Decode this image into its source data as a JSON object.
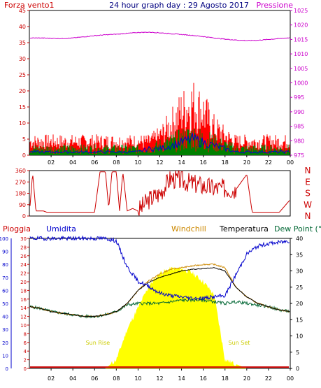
{
  "header": {
    "title": "24 hour graph day : 29 Agosto 2017",
    "left_label": "Forza vento1",
    "right_label": "Pressione"
  },
  "colors": {
    "wind_gust": "#ff0000",
    "wind_avg": "#008000",
    "wind_speed_line": "#0000cc",
    "pressure": "#cc00cc",
    "direction": "#cc0000",
    "rain": "#cc0000",
    "humidity": "#0000cc",
    "windchill": "#cc8800",
    "temperature": "#000000",
    "dewpoint": "#006633",
    "solar": "#ffff00"
  },
  "chart_data": [
    {
      "type": "line",
      "name": "wind-pressure",
      "x_tick_labels": [
        "02",
        "04",
        "06",
        "08",
        "10",
        "12",
        "14",
        "16",
        "18",
        "20",
        "22",
        "00"
      ],
      "left_axis": {
        "label": "Forza vento1",
        "ylim": [
          0,
          45
        ],
        "ticks": [
          "0",
          "5",
          "10",
          "15",
          "20",
          "25",
          "30",
          "35",
          "40",
          "45"
        ]
      },
      "right_axis": {
        "label": "Pressione",
        "ylim": [
          975,
          1025
        ],
        "ticks": [
          "975",
          "980",
          "985",
          "990",
          "995",
          "1000",
          "1005",
          "1010",
          "1015",
          "1020",
          "1025"
        ]
      },
      "hours": [
        0,
        1,
        2,
        3,
        4,
        5,
        6,
        7,
        8,
        9,
        10,
        11,
        12,
        13,
        14,
        15,
        16,
        17,
        18,
        19,
        20,
        21,
        22,
        23,
        24
      ],
      "series": [
        {
          "name": "Pressione",
          "values": [
            1015.5,
            1015.5,
            1015.4,
            1015.3,
            1015.5,
            1015.9,
            1016.3,
            1016.6,
            1016.8,
            1017.1,
            1017.4,
            1017.5,
            1017.3,
            1017,
            1016.7,
            1016.4,
            1016,
            1015.5,
            1015.1,
            1014.8,
            1014.6,
            1014.7,
            1015,
            1015.3,
            1015.6
          ]
        },
        {
          "name": "gust",
          "values": [
            5,
            5,
            5,
            5,
            5,
            5,
            5,
            5,
            5,
            5,
            5,
            5,
            7,
            11,
            16,
            19,
            16,
            10,
            7,
            5,
            5,
            5,
            5,
            5,
            5
          ]
        },
        {
          "name": "average",
          "values": [
            2,
            2,
            2,
            2,
            2,
            2,
            2,
            2,
            2,
            2,
            2,
            2,
            3,
            4,
            5,
            6,
            5,
            4,
            3,
            2,
            2,
            2,
            2,
            2,
            2
          ]
        },
        {
          "name": "speed",
          "values": [
            1,
            1,
            1,
            1,
            1,
            1,
            1,
            1,
            1,
            1,
            1,
            2,
            2,
            3,
            4,
            5,
            4,
            3,
            2,
            1,
            1,
            1,
            1,
            1,
            1
          ]
        }
      ]
    },
    {
      "type": "line",
      "name": "wind-direction",
      "ylim": [
        0,
        360
      ],
      "ticks": [
        "0",
        "90",
        "180",
        "270",
        "360"
      ],
      "compass_labels": [
        "N",
        "W",
        "S",
        "E",
        "N"
      ],
      "hours": [
        0,
        0.3,
        0.6,
        1,
        1.3,
        1.6,
        2,
        3,
        4,
        5,
        6,
        6.5,
        7,
        7.3,
        7.6,
        8,
        8.3,
        8.6,
        9,
        9.5,
        10,
        11,
        12,
        13,
        14,
        15,
        16,
        17,
        18,
        19,
        20,
        20.5,
        21,
        22,
        23,
        24
      ],
      "values": [
        10,
        340,
        40,
        40,
        40,
        30,
        30,
        30,
        30,
        30,
        30,
        350,
        350,
        60,
        350,
        350,
        40,
        350,
        40,
        60,
        40,
        130,
        180,
        300,
        280,
        260,
        240,
        220,
        220,
        210,
        330,
        30,
        30,
        30,
        30,
        130
      ]
    },
    {
      "type": "area",
      "name": "humidity-temperature",
      "x_tick_labels": [
        "02",
        "04",
        "06",
        "08",
        "10",
        "12",
        "14",
        "16",
        "18",
        "20",
        "22",
        "00"
      ],
      "annotations": [
        "Sun Rise",
        "Sun Set"
      ],
      "legend": [
        "Pioggia",
        "Umidita",
        "Windchill",
        "Temperatura",
        "Dew Point (°C"
      ],
      "left_axis_rain": {
        "label": "Pioggia",
        "ylim": [
          0,
          30
        ],
        "ticks": [
          "0",
          "2",
          "4",
          "6",
          "8",
          "10",
          "12",
          "14",
          "16",
          "18",
          "20",
          "22",
          "24",
          "26",
          "28",
          "30"
        ]
      },
      "left_axis_humidity": {
        "label": "Umidita",
        "ylim": [
          0,
          100
        ],
        "ticks": [
          "0",
          "10",
          "20",
          "30",
          "40",
          "50",
          "60",
          "70",
          "80",
          "90",
          "100"
        ]
      },
      "right_axis": {
        "label": "Dew Point (°C",
        "ylim": [
          0,
          40
        ],
        "ticks": [
          "0",
          "5",
          "10",
          "15",
          "20",
          "25",
          "30",
          "35",
          "40"
        ]
      },
      "hours": [
        0,
        1,
        2,
        3,
        4,
        5,
        6,
        7,
        8,
        9,
        10,
        11,
        12,
        13,
        14,
        15,
        16,
        17,
        18,
        19,
        20,
        21,
        22,
        23,
        24
      ],
      "series": [
        {
          "name": "Umidita",
          "values": [
            100,
            100,
            100,
            100,
            100,
            100,
            100,
            100,
            98,
            78,
            67,
            63,
            58,
            56,
            55,
            54,
            54,
            55,
            56,
            72,
            88,
            94,
            96,
            97,
            98
          ]
        },
        {
          "name": "Temperatura",
          "values": [
            19,
            18.5,
            17.5,
            17,
            16.5,
            16,
            16,
            16.5,
            17.5,
            20,
            24,
            26.5,
            28,
            29,
            30,
            30.5,
            30.7,
            31,
            30,
            25,
            22,
            20,
            19,
            18,
            17.5
          ]
        },
        {
          "name": "Windchill",
          "values": [
            19,
            18.5,
            17.5,
            17,
            16.5,
            16,
            16,
            16.5,
            17.5,
            20,
            24,
            27,
            29,
            30.5,
            31,
            31.5,
            32,
            32,
            31,
            25,
            22,
            20,
            19,
            18,
            17.5
          ]
        },
        {
          "name": "Dew Point",
          "values": [
            19,
            18.5,
            17.5,
            17,
            16.5,
            16,
            16,
            16.5,
            17.5,
            19.5,
            20,
            20,
            20,
            20.5,
            21,
            21,
            21,
            20.5,
            20,
            20.5,
            20,
            19.5,
            19,
            18,
            17.5
          ]
        },
        {
          "name": "solar",
          "values": [
            0,
            0,
            0,
            0,
            0,
            0,
            0,
            0,
            2,
            9,
            14,
            19,
            22,
            23,
            23,
            22,
            20,
            17,
            2,
            1,
            0,
            0,
            0,
            0,
            0
          ]
        },
        {
          "name": "Pioggia",
          "values": [
            0.3,
            0.3,
            0.3,
            0.3,
            0.3,
            0.3,
            0.3,
            0.3,
            0.3,
            0.3,
            0.3,
            0.3,
            0.3,
            0.3,
            0.3,
            0.3,
            0.3,
            0.3,
            0.3,
            0.3,
            0.3,
            0.3,
            0.3,
            0.3,
            0.3
          ]
        }
      ]
    }
  ]
}
